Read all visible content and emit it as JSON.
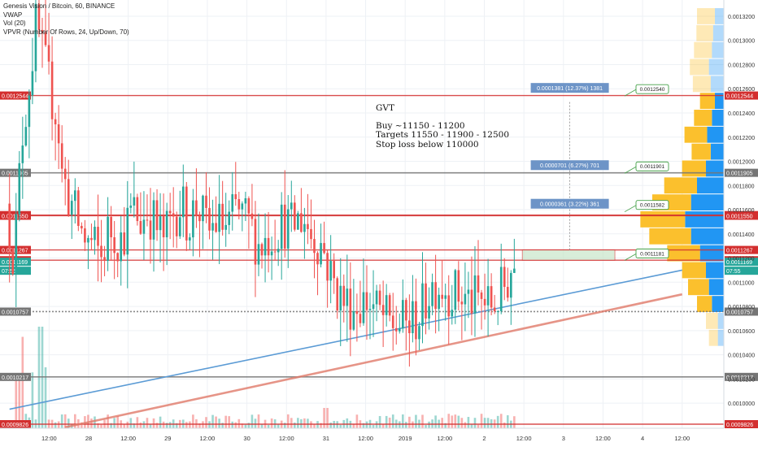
{
  "legend": {
    "symbol": "Genesis Vision / Bitcoin, 60, BINANCE",
    "indicators": [
      "VWAP",
      "Vol (20)",
      "VPVR (Number Of Rows, 24, Up/Down, 70)"
    ]
  },
  "annotation": {
    "title": "GVT",
    "lines": [
      "Buy ~11150 - 11200",
      "Targets 11550 - 11900 - 12500",
      "Stop loss below 110000"
    ]
  },
  "chart_data": {
    "type": "candlestick",
    "ylim": [
      0.0009826,
      0.001324
    ],
    "y_ticks": [
      "0.0013200",
      "0.0013000",
      "0.0012800",
      "0.0012600",
      "0.0012400",
      "0.0012200",
      "0.0012000",
      "0.0011800",
      "0.0011600",
      "0.0011400",
      "0.0011200",
      "0.0011000",
      "0.0010800",
      "0.0010600",
      "0.0010400",
      "0.0010200",
      "0.0010000"
    ],
    "x_ticks": [
      {
        "label": "12:00",
        "t": -0.5
      },
      {
        "label": "28",
        "t": 0
      },
      {
        "label": "12:00",
        "t": 0.5
      },
      {
        "label": "29",
        "t": 1
      },
      {
        "label": "12:00",
        "t": 1.5
      },
      {
        "label": "30",
        "t": 2
      },
      {
        "label": "12:00",
        "t": 2.5
      },
      {
        "label": "31",
        "t": 3
      },
      {
        "label": "12:00",
        "t": 3.5
      },
      {
        "label": "2019",
        "t": 4
      },
      {
        "label": "12:00",
        "t": 4.5
      },
      {
        "label": "2",
        "t": 5
      },
      {
        "label": "12:00",
        "t": 5.5
      },
      {
        "label": "3",
        "t": 6
      },
      {
        "label": "12:00",
        "t": 6.5
      },
      {
        "label": "4",
        "t": 7
      },
      {
        "label": "12:00",
        "t": 7.5
      }
    ],
    "price_levels": [
      {
        "label": "0.0012544",
        "value": 0.0012544,
        "color": "#d32f2f"
      },
      {
        "label": "0.0011905",
        "value": 0.0011905,
        "color": "#757575"
      },
      {
        "label": "0.0011555",
        "value": 0.0011555,
        "color": "#d32f2f"
      },
      {
        "label": "0.0011550",
        "value": 0.001155,
        "color": "#d32f2f"
      },
      {
        "label": "0.0011267",
        "value": 0.0011267,
        "color": "#d32f2f"
      },
      {
        "label": "0.0011182",
        "value": 0.0011182,
        "color": "#d32f2f"
      },
      {
        "label": "0.0010757",
        "value": 0.0010757,
        "color": "#757575"
      },
      {
        "label": "0.0010217",
        "value": 0.0010217,
        "color": "#757575"
      },
      {
        "label": "0.0009826",
        "value": 0.0009826,
        "color": "#d32f2f"
      }
    ],
    "last_price": {
      "label": "0.0011169",
      "value": 0.0011169,
      "countdown": "07:55",
      "color": "#26a69a"
    },
    "targets": [
      {
        "label": "0.0001381 (12.37%) 1381",
        "callout": "0.0012540",
        "price": 0.001254
      },
      {
        "label": "0.0000701 (6.27%) 701",
        "callout": "0.0011901",
        "price": 0.0011901
      },
      {
        "label": "0.0000361 (3.22%) 361",
        "callout": "0.0011582",
        "price": 0.0011582
      },
      {
        "label": "",
        "callout": "0.0011181",
        "price": 0.0011181
      }
    ],
    "anchor_points": [
      [
        -1.0,
        0.001165
      ],
      [
        -0.9,
        0.00112
      ],
      [
        -0.8,
        0.00122
      ],
      [
        -0.7,
        0.00127
      ],
      [
        -0.62,
        0.001315
      ],
      [
        -0.55,
        0.00129
      ],
      [
        -0.45,
        0.00126
      ],
      [
        -0.35,
        0.001235
      ],
      [
        -0.3,
        0.00119
      ],
      [
        -0.2,
        0.00117
      ],
      [
        -0.1,
        0.00115
      ],
      [
        0.0,
        0.001135
      ],
      [
        0.1,
        0.00113
      ],
      [
        0.2,
        0.00112
      ],
      [
        0.3,
        0.001145
      ],
      [
        0.45,
        0.001135
      ],
      [
        0.6,
        0.00116
      ],
      [
        0.7,
        0.00115
      ],
      [
        0.8,
        0.00116
      ],
      [
        0.9,
        0.001145
      ],
      [
        1.0,
        0.001135
      ],
      [
        1.1,
        0.001155
      ],
      [
        1.2,
        0.001165
      ],
      [
        1.3,
        0.00115
      ],
      [
        1.42,
        0.001165
      ],
      [
        1.55,
        0.00114
      ],
      [
        1.65,
        0.00115
      ],
      [
        1.8,
        0.001145
      ],
      [
        1.9,
        0.00116
      ],
      [
        2.05,
        0.00115
      ],
      [
        2.2,
        0.00113
      ],
      [
        2.35,
        0.00114
      ],
      [
        2.5,
        0.00115
      ],
      [
        2.6,
        0.001145
      ],
      [
        2.75,
        0.001155
      ],
      [
        2.85,
        0.00114
      ],
      [
        3.0,
        0.00113
      ],
      [
        3.1,
        0.001105
      ],
      [
        3.25,
        0.001085
      ],
      [
        3.4,
        0.00108
      ],
      [
        3.55,
        0.001085
      ],
      [
        3.7,
        0.001075
      ],
      [
        3.85,
        0.001065
      ],
      [
        4.0,
        0.001065
      ],
      [
        4.1,
        0.001065
      ],
      [
        4.25,
        0.001075
      ],
      [
        4.35,
        0.001095
      ],
      [
        4.45,
        0.0011
      ],
      [
        4.55,
        0.001095
      ],
      [
        4.7,
        0.00109
      ],
      [
        4.85,
        0.001085
      ],
      [
        5.0,
        0.001085
      ],
      [
        5.1,
        0.00108
      ],
      [
        5.2,
        0.001085
      ],
      [
        5.32,
        0.0011
      ],
      [
        5.4,
        0.001115
      ]
    ],
    "volume_spikes": [
      [
        -0.85,
        0.9
      ],
      [
        -0.6,
        1.0
      ],
      [
        -0.55,
        0.6
      ],
      [
        -0.7,
        0.55
      ],
      [
        -0.9,
        0.5
      ],
      [
        3.0,
        0.2
      ],
      [
        5.45,
        0.25
      ]
    ],
    "trendline_blue": [
      [
        -1.0,
        0.000995
      ],
      [
        7.5,
        0.00111
      ]
    ],
    "trendline_red": [
      [
        -0.3,
        0.00098
      ],
      [
        7.5,
        0.00109
      ]
    ],
    "entry_zone": [
      0.0011182,
      0.0011267
    ],
    "vpvr": [
      {
        "price": 0.00132,
        "up": 0.15,
        "down": 0.3
      },
      {
        "price": 0.001306,
        "up": 0.18,
        "down": 0.28
      },
      {
        "price": 0.001292,
        "up": 0.2,
        "down": 0.3
      },
      {
        "price": 0.001278,
        "up": 0.25,
        "down": 0.32
      },
      {
        "price": 0.001264,
        "up": 0.22,
        "down": 0.3
      },
      {
        "price": 0.00125,
        "up": 0.15,
        "down": 0.25
      },
      {
        "price": 0.001236,
        "up": 0.2,
        "down": 0.3
      },
      {
        "price": 0.001222,
        "up": 0.28,
        "down": 0.38
      },
      {
        "price": 0.001208,
        "up": 0.22,
        "down": 0.32
      },
      {
        "price": 0.001194,
        "up": 0.3,
        "down": 0.4
      },
      {
        "price": 0.00118,
        "up": 0.45,
        "down": 0.55
      },
      {
        "price": 0.001166,
        "up": 0.55,
        "down": 0.65
      },
      {
        "price": 0.001152,
        "up": 0.65,
        "down": 0.75
      },
      {
        "price": 0.001138,
        "up": 0.55,
        "down": 0.7
      },
      {
        "price": 0.001124,
        "up": 0.4,
        "down": 0.55
      },
      {
        "price": 0.00111,
        "up": 0.3,
        "down": 0.4
      },
      {
        "price": 0.001096,
        "up": 0.25,
        "down": 0.35
      },
      {
        "price": 0.001082,
        "up": 0.2,
        "down": 0.25
      },
      {
        "price": 0.001068,
        "up": 0.1,
        "down": 0.2
      },
      {
        "price": 0.001054,
        "up": 0.1,
        "down": 0.15
      }
    ]
  },
  "colors": {
    "up": "#26a69a",
    "down": "#ef5350",
    "blue_line": "#5b9bd5",
    "red_line": "#e07a6a",
    "vp_up": "#2196f3",
    "vp_down": "#fbc02d",
    "label_blue": "#6d94c7",
    "callout_green": "#43a047"
  }
}
